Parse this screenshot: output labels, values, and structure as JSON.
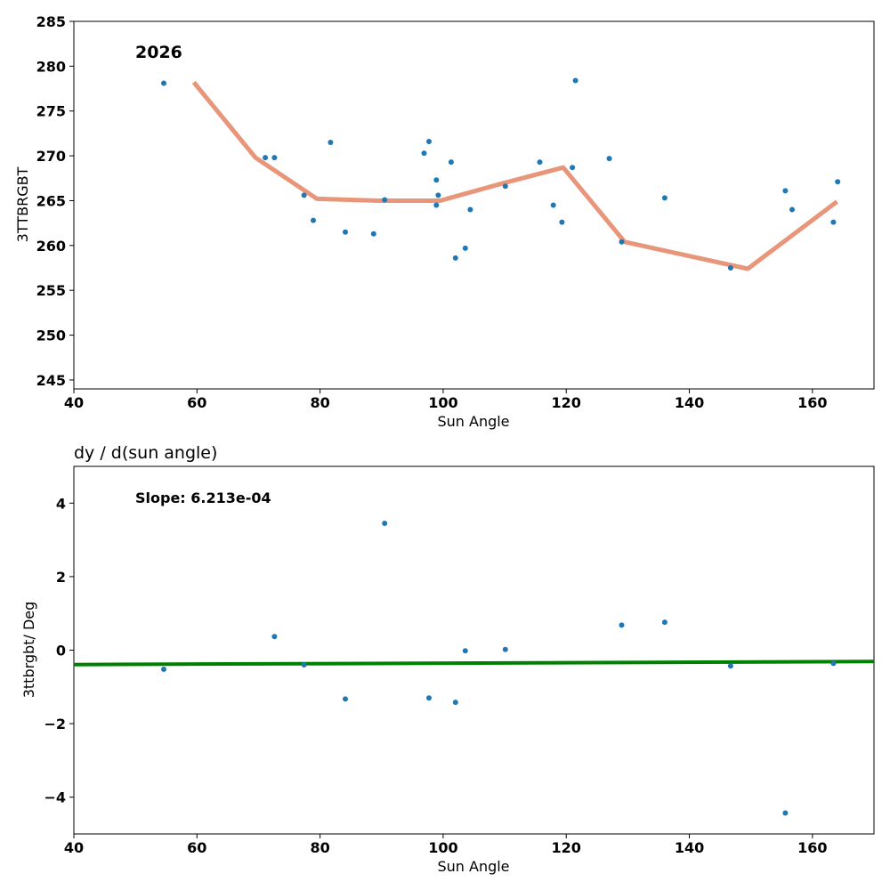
{
  "chart_data": [
    {
      "type": "scatter",
      "title": "",
      "annotation": "2026",
      "xlabel": "Sun Angle",
      "ylabel": "3TTBRGBT",
      "xlim": [
        40,
        170
      ],
      "ylim": [
        244,
        285
      ],
      "xticks": [
        40,
        60,
        80,
        100,
        120,
        140,
        160
      ],
      "yticks": [
        245,
        250,
        255,
        260,
        265,
        270,
        275,
        280,
        285
      ],
      "point_color": "#1f77b4",
      "line_color": "#e8967a",
      "points": {
        "x": [
          54.6,
          71.1,
          72.6,
          77.4,
          78.9,
          81.7,
          84.1,
          88.7,
          90.5,
          96.9,
          97.7,
          98.9,
          98.9,
          99.2,
          101.3,
          102.0,
          103.6,
          104.4,
          110.1,
          115.7,
          117.9,
          119.3,
          121.0,
          121.5,
          127.0,
          129.0,
          136.0,
          146.7,
          155.6,
          156.7,
          163.4,
          164.1
        ],
        "y": [
          278.1,
          269.8,
          269.8,
          265.6,
          262.8,
          271.5,
          261.5,
          261.3,
          265.1,
          270.3,
          271.6,
          267.3,
          264.5,
          265.6,
          269.3,
          258.6,
          259.7,
          264.0,
          266.6,
          269.3,
          264.5,
          262.6,
          268.7,
          278.4,
          269.7,
          260.4,
          265.3,
          257.5,
          266.1,
          264.0,
          262.6,
          267.1
        ]
      },
      "trend": {
        "x": [
          59.5,
          69.5,
          79.5,
          89.5,
          99.5,
          109.5,
          119.5,
          129.5,
          139.5,
          149.5,
          164.0
        ],
        "y": [
          278.2,
          269.8,
          265.2,
          265.0,
          265.0,
          266.9,
          268.7,
          260.4,
          258.9,
          257.4,
          264.9
        ]
      }
    },
    {
      "type": "scatter",
      "title": "dy / d(sun angle)",
      "annotation": "Slope: 6.213e-04",
      "xlabel": "Sun Angle",
      "ylabel": "3ttbrgbt/ Deg",
      "xlim": [
        40,
        170
      ],
      "ylim": [
        -5,
        5
      ],
      "xticks": [
        40,
        60,
        80,
        100,
        120,
        140,
        160
      ],
      "yticks": [
        -4,
        -2,
        0,
        2,
        4
      ],
      "ytick_labels": [
        "−4",
        "−2",
        "0",
        "2",
        "4"
      ],
      "point_color": "#1f77b4",
      "line_color": "#008000",
      "points": {
        "x": [
          54.6,
          72.6,
          77.4,
          84.1,
          90.5,
          97.7,
          102.0,
          103.6,
          110.1,
          129.0,
          136.0,
          146.7,
          155.6,
          163.4
        ],
        "y": [
          -0.52,
          0.37,
          -0.4,
          -1.33,
          3.45,
          -1.3,
          -1.42,
          -0.02,
          0.02,
          0.68,
          0.76,
          -0.43,
          -4.43,
          -0.36
        ]
      },
      "trend": {
        "x": [
          40,
          170
        ],
        "y": [
          -0.392,
          -0.311
        ]
      }
    }
  ]
}
